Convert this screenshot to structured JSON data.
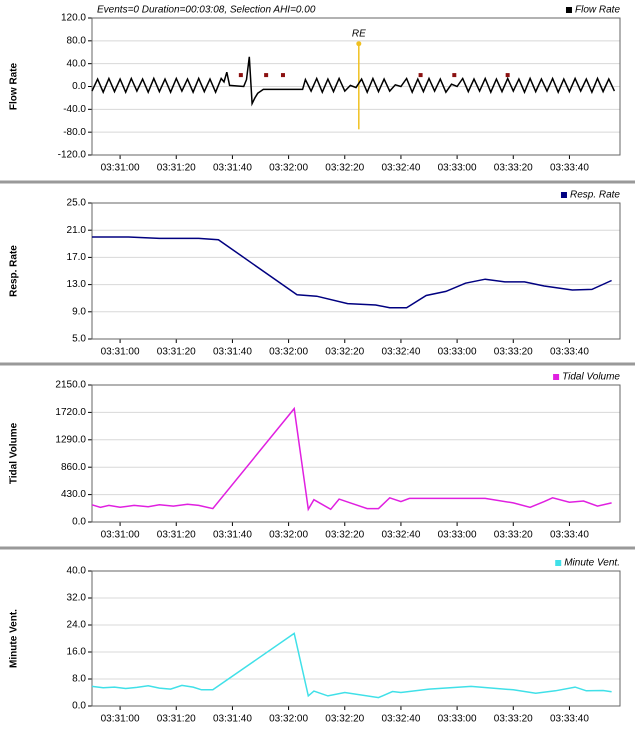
{
  "chart_data": [
    {
      "type": "line",
      "title": "Events=0 Duration=00:03:08, Selection AHI=0.00",
      "ylabel": "Flow Rate",
      "xlim": [
        12650,
        12838
      ],
      "ylim": [
        -120,
        120
      ],
      "xticks": [
        {
          "value": 12660,
          "label": "03:31:00"
        },
        {
          "value": 12680,
          "label": "03:31:20"
        },
        {
          "value": 12700,
          "label": "03:31:40"
        },
        {
          "value": 12720,
          "label": "03:32:00"
        },
        {
          "value": 12740,
          "label": "03:32:20"
        },
        {
          "value": 12760,
          "label": "03:32:40"
        },
        {
          "value": 12780,
          "label": "03:33:00"
        },
        {
          "value": 12800,
          "label": "03:33:20"
        },
        {
          "value": 12820,
          "label": "03:33:40"
        }
      ],
      "yticks": [
        {
          "value": -120,
          "label": "-120.0"
        },
        {
          "value": -80,
          "label": "-80.0"
        },
        {
          "value": -40,
          "label": "-40.0"
        },
        {
          "value": 0,
          "label": "0.0"
        },
        {
          "value": 40,
          "label": "40.0"
        },
        {
          "value": 80,
          "label": "80.0"
        },
        {
          "value": 120,
          "label": "120.0"
        }
      ],
      "grid": true,
      "x": [
        12650,
        12652,
        12654,
        12656,
        12658,
        12660,
        12662,
        12664,
        12666,
        12668,
        12670,
        12672,
        12674,
        12676,
        12678,
        12680,
        12682,
        12684,
        12686,
        12688,
        12690,
        12692,
        12694,
        12696,
        12697,
        12698,
        12699,
        12704,
        12705,
        12706,
        12707,
        12708,
        12709,
        12711,
        12725,
        12726,
        12728,
        12730,
        12732,
        12734,
        12736,
        12738,
        12740,
        12742,
        12744,
        12746,
        12748,
        12750,
        12752,
        12754,
        12756,
        12758,
        12760,
        12762,
        12764,
        12766,
        12768,
        12770,
        12772,
        12774,
        12776,
        12778,
        12780,
        12782,
        12784,
        12786,
        12788,
        12790,
        12792,
        12794,
        12796,
        12798,
        12800,
        12802,
        12804,
        12806,
        12808,
        12810,
        12812,
        12814,
        12816,
        12818,
        12820,
        12822,
        12824,
        12826,
        12828,
        12830,
        12832,
        12834,
        12836
      ],
      "series": [
        {
          "name": "Flow Rate",
          "color": "#000000",
          "values": [
            -8,
            13,
            -10,
            14,
            -9,
            13,
            -10,
            14,
            -8,
            13,
            -10,
            14,
            -9,
            13,
            -10,
            14,
            -8,
            13,
            -10,
            14,
            -9,
            13,
            -10,
            14,
            8,
            25,
            2,
            0,
            12,
            52,
            -30,
            -20,
            -12,
            -5,
            -5,
            12,
            -8,
            14,
            -10,
            13,
            -9,
            14,
            -8,
            2,
            -2,
            13,
            -10,
            14,
            -9,
            13,
            -8,
            3,
            0,
            14,
            -10,
            13,
            -9,
            14,
            -8,
            13,
            -10,
            4,
            0,
            14,
            -9,
            13,
            -8,
            14,
            -10,
            13,
            -9,
            14,
            -8,
            13,
            -10,
            14,
            -9,
            13,
            -8,
            14,
            -10,
            13,
            -9,
            14,
            -8,
            13,
            -10,
            14,
            -9,
            13,
            -8
          ]
        }
      ],
      "markers": {
        "color": "#8b1010",
        "x": [
          12703,
          12712,
          12718,
          12767,
          12779,
          12798
        ],
        "values": [
          20,
          20,
          20,
          20,
          20,
          20
        ]
      },
      "annotation": {
        "text": "RE",
        "color": "#f0c020",
        "x": 12745,
        "values": [
          75,
          -75
        ]
      }
    },
    {
      "type": "line",
      "ylabel": "Resp. Rate",
      "xlim": [
        12650,
        12838
      ],
      "ylim": [
        5,
        25
      ],
      "xticks": [
        {
          "value": 12660,
          "label": "03:31:00"
        },
        {
          "value": 12680,
          "label": "03:31:20"
        },
        {
          "value": 12700,
          "label": "03:31:40"
        },
        {
          "value": 12720,
          "label": "03:32:00"
        },
        {
          "value": 12740,
          "label": "03:32:20"
        },
        {
          "value": 12760,
          "label": "03:32:40"
        },
        {
          "value": 12780,
          "label": "03:33:00"
        },
        {
          "value": 12800,
          "label": "03:33:20"
        },
        {
          "value": 12820,
          "label": "03:33:40"
        }
      ],
      "yticks": [
        {
          "value": 5,
          "label": "5.0"
        },
        {
          "value": 9,
          "label": "9.0"
        },
        {
          "value": 13,
          "label": "13.0"
        },
        {
          "value": 17,
          "label": "17.0"
        },
        {
          "value": 21,
          "label": "21.0"
        },
        {
          "value": 25,
          "label": "25.0"
        }
      ],
      "grid": true,
      "x": [
        12650,
        12663,
        12674,
        12688,
        12695,
        12723,
        12730,
        12741,
        12751,
        12756,
        12762,
        12769,
        12776,
        12783,
        12790,
        12797,
        12804,
        12811,
        12821,
        12828,
        12835
      ],
      "series": [
        {
          "name": "Resp. Rate",
          "color": "#000080",
          "values": [
            20.0,
            20.0,
            19.8,
            19.8,
            19.6,
            11.5,
            11.3,
            10.2,
            10.0,
            9.6,
            9.6,
            11.4,
            12.0,
            13.2,
            13.8,
            13.4,
            13.4,
            12.8,
            12.2,
            12.3,
            13.6
          ]
        }
      ]
    },
    {
      "type": "line",
      "ylabel": "Tidal Volume",
      "xlim": [
        12650,
        12838
      ],
      "ylim": [
        0,
        2150
      ],
      "xticks": [
        {
          "value": 12660,
          "label": "03:31:00"
        },
        {
          "value": 12680,
          "label": "03:31:20"
        },
        {
          "value": 12700,
          "label": "03:31:40"
        },
        {
          "value": 12720,
          "label": "03:32:00"
        },
        {
          "value": 12740,
          "label": "03:32:20"
        },
        {
          "value": 12760,
          "label": "03:32:40"
        },
        {
          "value": 12780,
          "label": "03:33:00"
        },
        {
          "value": 12800,
          "label": "03:33:20"
        },
        {
          "value": 12820,
          "label": "03:33:40"
        }
      ],
      "yticks": [
        {
          "value": 0,
          "label": "0.0"
        },
        {
          "value": 430,
          "label": "430.0"
        },
        {
          "value": 860,
          "label": "860.0"
        },
        {
          "value": 1290,
          "label": "1290.0"
        },
        {
          "value": 1720,
          "label": "1720.0"
        },
        {
          "value": 2150,
          "label": "2150.0"
        }
      ],
      "grid": true,
      "x": [
        12650,
        12653,
        12656,
        12660,
        12665,
        12670,
        12674,
        12679,
        12684,
        12688,
        12693,
        12722,
        12727,
        12729,
        12735,
        12738,
        12742,
        12748,
        12752,
        12756,
        12760,
        12763,
        12790,
        12800,
        12806,
        12811,
        12814,
        12820,
        12825,
        12830,
        12835
      ],
      "series": [
        {
          "name": "Tidal Volume",
          "color": "#e020e0",
          "values": [
            270,
            230,
            260,
            230,
            260,
            240,
            270,
            250,
            280,
            260,
            210,
            1780,
            200,
            350,
            200,
            360,
            300,
            210,
            210,
            380,
            320,
            370,
            370,
            300,
            230,
            320,
            380,
            310,
            330,
            250,
            300
          ]
        }
      ]
    },
    {
      "type": "line",
      "ylabel": "Minute Vent.",
      "xlim": [
        12650,
        12838
      ],
      "ylim": [
        0,
        40
      ],
      "xticks": [
        {
          "value": 12660,
          "label": "03:31:00"
        },
        {
          "value": 12680,
          "label": "03:31:20"
        },
        {
          "value": 12700,
          "label": "03:31:40"
        },
        {
          "value": 12720,
          "label": "03:32:00"
        },
        {
          "value": 12740,
          "label": "03:32:20"
        },
        {
          "value": 12760,
          "label": "03:32:40"
        },
        {
          "value": 12780,
          "label": "03:33:00"
        },
        {
          "value": 12800,
          "label": "03:33:20"
        },
        {
          "value": 12820,
          "label": "03:33:40"
        }
      ],
      "yticks": [
        {
          "value": 0,
          "label": "0.0"
        },
        {
          "value": 8,
          "label": "8.0"
        },
        {
          "value": 16,
          "label": "16.0"
        },
        {
          "value": 24,
          "label": "24.0"
        },
        {
          "value": 32,
          "label": "32.0"
        },
        {
          "value": 40,
          "label": "40.0"
        }
      ],
      "grid": true,
      "x": [
        12650,
        12654,
        12658,
        12662,
        12666,
        12670,
        12674,
        12678,
        12682,
        12686,
        12689,
        12693,
        12722,
        12727,
        12729,
        12734,
        12740,
        12752,
        12757,
        12760,
        12770,
        12785,
        12800,
        12808,
        12815,
        12822,
        12826,
        12832,
        12835
      ],
      "series": [
        {
          "name": "Minute Vent.",
          "color": "#40e0e8",
          "values": [
            5.8,
            5.4,
            5.6,
            5.2,
            5.5,
            6.0,
            5.3,
            5.0,
            6.1,
            5.6,
            4.8,
            4.8,
            21.5,
            3.0,
            4.4,
            3.0,
            4.0,
            2.5,
            4.3,
            4.0,
            5.0,
            5.8,
            4.8,
            3.8,
            4.5,
            5.6,
            4.5,
            4.6,
            4.2
          ]
        }
      ]
    }
  ]
}
